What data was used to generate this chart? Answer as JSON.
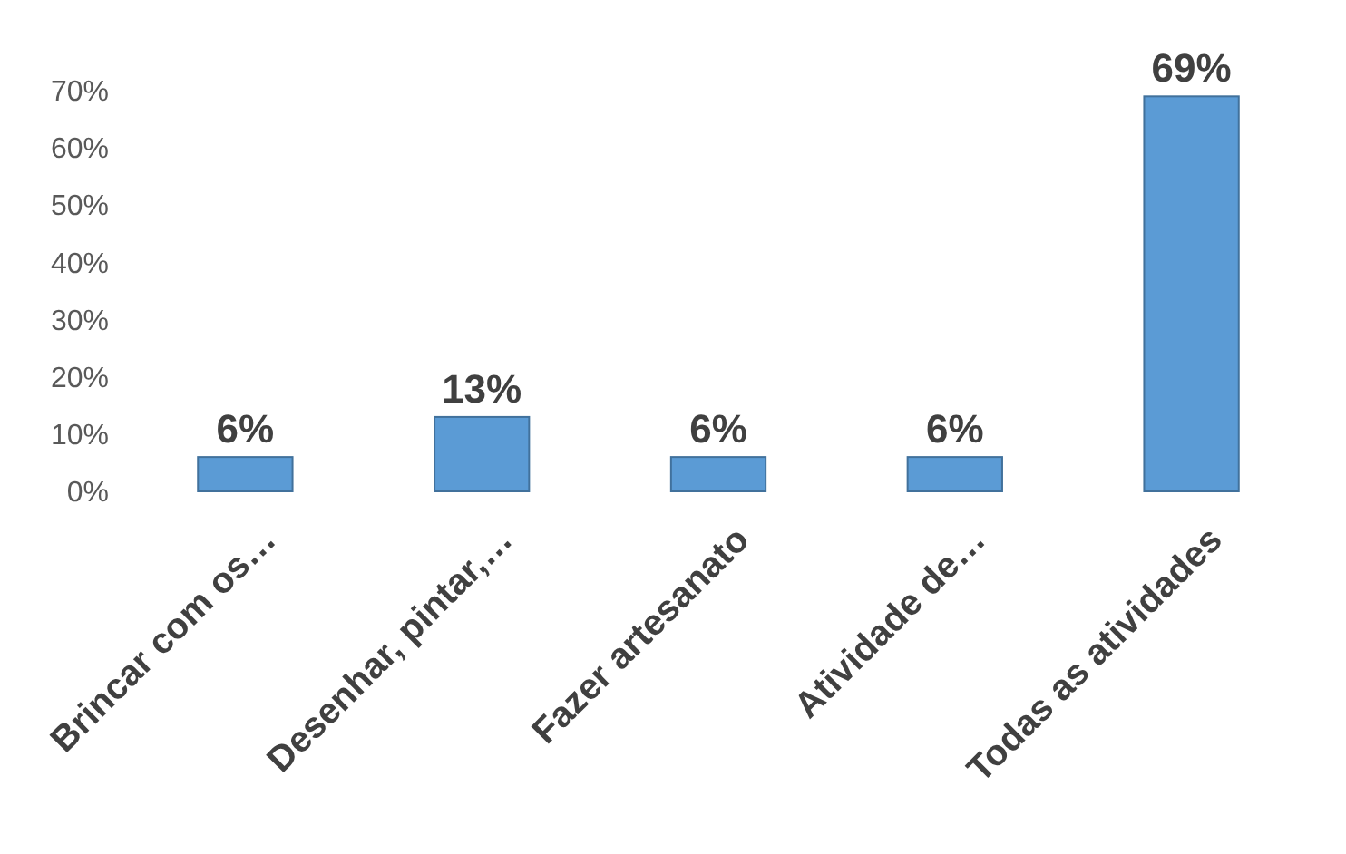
{
  "chart_data": {
    "type": "bar",
    "categories": [
      "Brincar com os…",
      "Desenhar, pintar,…",
      "Fazer artesanato",
      "Atividade de…",
      "Todas as atividades"
    ],
    "values": [
      6,
      13,
      6,
      6,
      69
    ],
    "color": "#5b9bd5",
    "ylim": [
      0,
      70
    ],
    "yticks": [
      {
        "value": 0,
        "label": "0%"
      },
      {
        "value": 10,
        "label": "10%"
      },
      {
        "value": 20,
        "label": "20%"
      },
      {
        "value": 30,
        "label": "30%"
      },
      {
        "value": 40,
        "label": "40%"
      },
      {
        "value": 50,
        "label": "50%"
      },
      {
        "value": 60,
        "label": "60%"
      },
      {
        "value": 70,
        "label": "70%"
      }
    ],
    "data_labels": true,
    "value_labels": [
      "6%",
      "13%",
      "6%",
      "6%",
      "69%"
    ],
    "grid": false
  }
}
